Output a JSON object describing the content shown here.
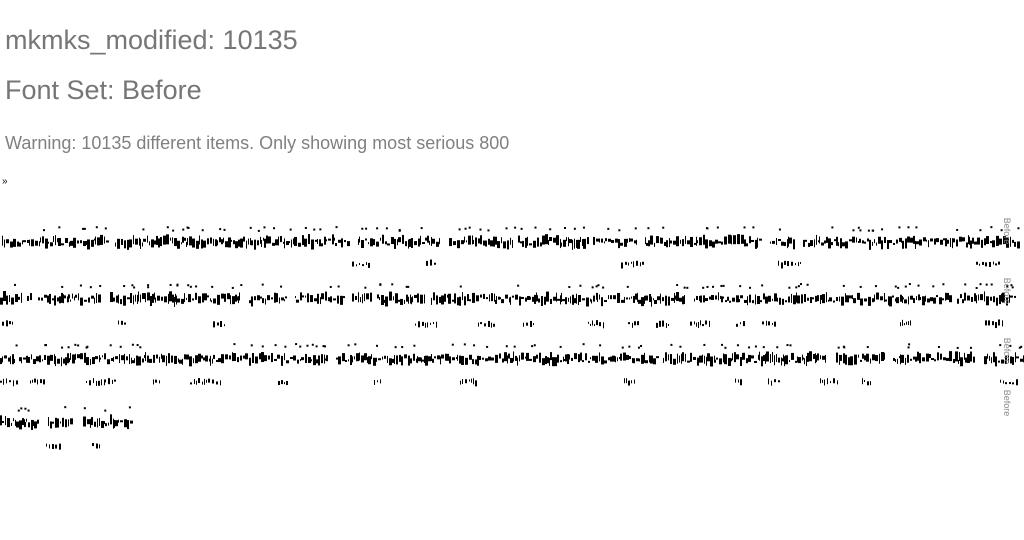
{
  "page": {
    "title": "mkmks_modified: 10135",
    "font_set": "Font Set: Before",
    "warning": "Warning: 10135 different items. Only showing most serious 800",
    "toggle_glyph": "»"
  },
  "rows": [
    {
      "label": "Before"
    },
    {
      "label": "Before"
    },
    {
      "label": "Before"
    },
    {
      "label": "Before"
    }
  ],
  "colors": {
    "heading": "#767676",
    "glyph": "#000000",
    "label": "#888888"
  }
}
